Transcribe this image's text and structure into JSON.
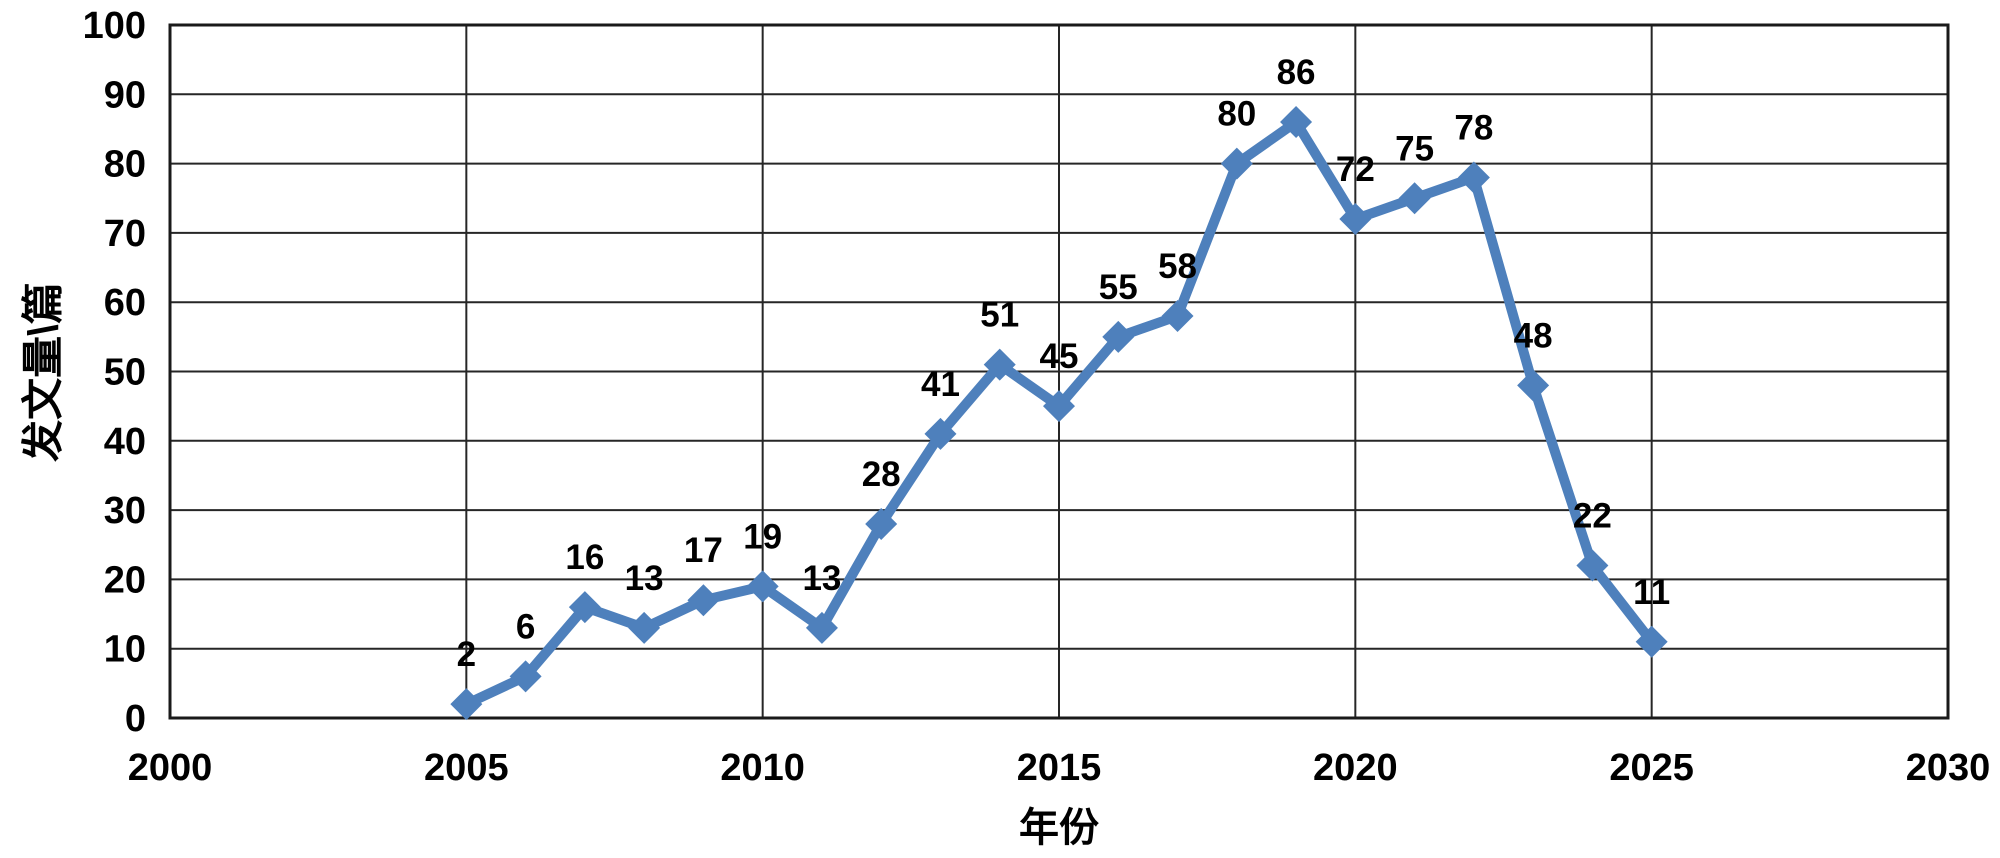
{
  "chart_data": {
    "type": "line",
    "title": "",
    "xlabel": "年份",
    "ylabel": "发文量\\篇",
    "x": [
      2005,
      2006,
      2007,
      2008,
      2009,
      2010,
      2011,
      2012,
      2013,
      2014,
      2015,
      2016,
      2017,
      2018,
      2019,
      2020,
      2021,
      2022,
      2023,
      2024,
      2025
    ],
    "values": [
      2,
      6,
      16,
      13,
      17,
      19,
      13,
      28,
      41,
      51,
      45,
      55,
      58,
      80,
      86,
      72,
      75,
      78,
      48,
      22,
      11
    ],
    "series_name": "发文量",
    "xlim": [
      2000,
      2030
    ],
    "ylim": [
      0,
      100
    ],
    "x_tick_step": 5,
    "y_tick_step": 10,
    "x_ticks": [
      2000,
      2005,
      2010,
      2015,
      2020,
      2025,
      2030
    ],
    "y_ticks": [
      0,
      10,
      20,
      30,
      40,
      50,
      60,
      70,
      80,
      90,
      100
    ],
    "grid": true,
    "legend_position": "none",
    "data_labels": true,
    "marker": "diamond",
    "colors": {
      "line": "#4E80BC",
      "marker": "#4E80BC",
      "gridline": "#262626",
      "border": "#1a1a1a",
      "text": "#000000",
      "background": "#ffffff"
    }
  }
}
